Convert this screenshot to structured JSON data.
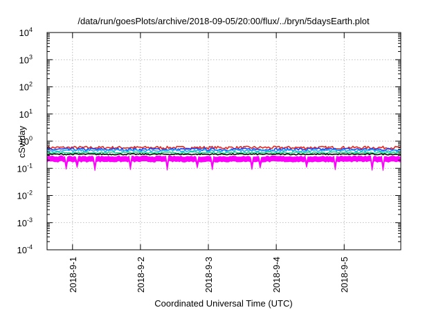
{
  "chart_data": {
    "type": "area",
    "title": "/data/run/goesPlots/archive/2018-09-05/20:00/flux/../bryn/5daysEarth.plot",
    "xlabel": "Coordinated Universal Time (UTC)",
    "ylabel": "cSv/day",
    "yscale": "log",
    "ylim": [
      0.0001,
      10000
    ],
    "xlim": [
      "2018-08-31 15:00",
      "2018-09-05 20:00"
    ],
    "x_ticks": [
      "2018-9-1",
      "2018-9-2",
      "2018-9-3",
      "2018-9-4",
      "2018-9-5"
    ],
    "y_ticks": [
      {
        "base": "10",
        "exp": "-4"
      },
      {
        "base": "10",
        "exp": "-3"
      },
      {
        "base": "10",
        "exp": "-2"
      },
      {
        "base": "10",
        "exp": "-1"
      },
      {
        "base": "10",
        "exp": "0"
      },
      {
        "base": "10",
        "exp": "1"
      },
      {
        "base": "10",
        "exp": "2"
      },
      {
        "base": "10",
        "exp": "3"
      },
      {
        "base": "10",
        "exp": "4"
      }
    ],
    "grid": true,
    "legend": "none",
    "series": [
      {
        "color": "#e8251f",
        "level": 0.58,
        "jitter": 0.12,
        "dips": false,
        "fill": false
      },
      {
        "color": "#1f3ff0",
        "level": 0.5,
        "jitter": 0.12,
        "dips": false,
        "fill": false
      },
      {
        "color": "#1fb0f5",
        "level": 0.45,
        "jitter": 0.1,
        "dips": false,
        "fill": false
      },
      {
        "color": "#1fd88a",
        "level": 0.38,
        "jitter": 0.07,
        "dips": false,
        "fill": false
      },
      {
        "color": "#000000",
        "level": 0.33,
        "jitter": 0.05,
        "dips": false,
        "fill": false
      },
      {
        "color": "#ff00ff",
        "level": 0.27,
        "jitter": 0.06,
        "dips": true,
        "fill": true
      }
    ]
  }
}
